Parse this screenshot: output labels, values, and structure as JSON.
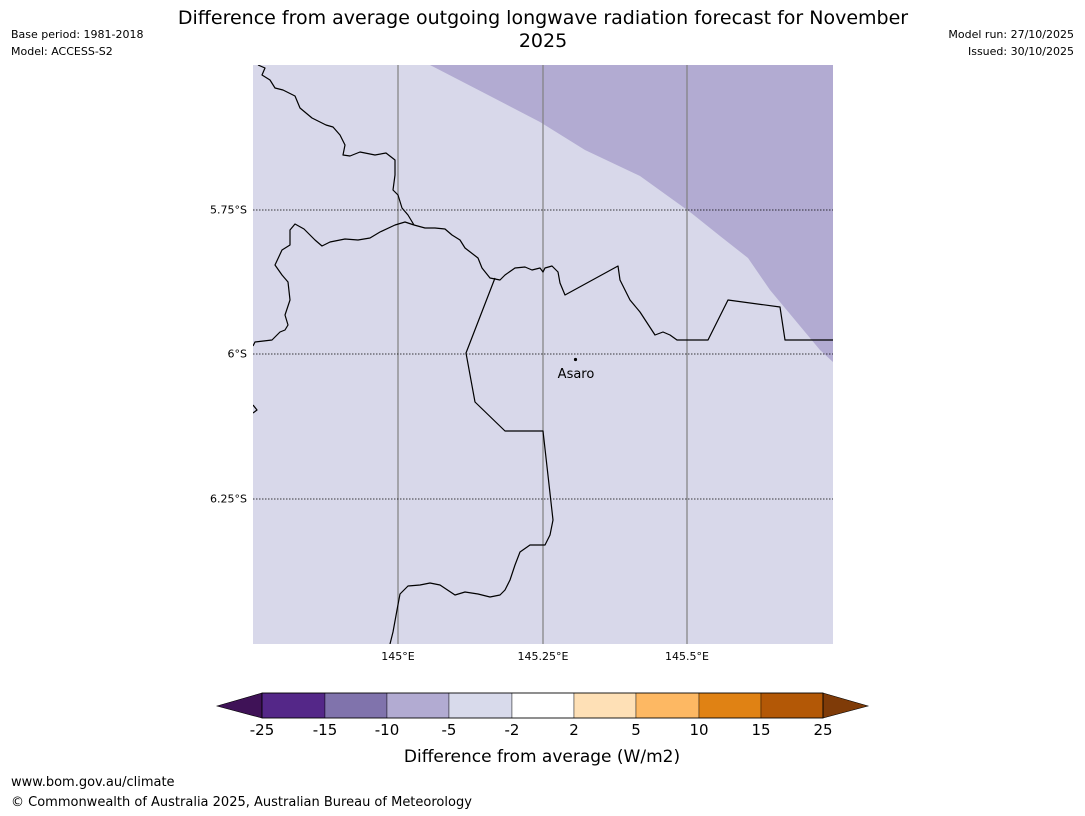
{
  "header": {
    "title": "Difference from average outgoing longwave radiation forecast for November 2025",
    "base_period": "Base period: 1981-2018",
    "model": "Model: ACCESS-S2",
    "model_run": "Model run: 27/10/2025",
    "issued": "Issued: 30/10/2025"
  },
  "map": {
    "place_label": "Asaro",
    "lat_labels": [
      "5.75°S",
      "6°S",
      "6.25°S"
    ],
    "lon_labels": [
      "145°E",
      "145.25°E",
      "145.5°E"
    ],
    "colors": {
      "background_bin": "#d8d8ea",
      "anomaly_bin": "#b2abd2",
      "border": "#000000",
      "gridline": "#808080"
    }
  },
  "colorbar": {
    "label": "Difference from average (W/m2)",
    "ticks": [
      "-25",
      "-15",
      "-10",
      "-5",
      "-2",
      "2",
      "5",
      "10",
      "15",
      "25"
    ],
    "colors": [
      "#3f1257",
      "#542788",
      "#8073ac",
      "#b2abd2",
      "#d8daeb",
      "#ffffff",
      "#fee0b6",
      "#fdb863",
      "#e08214",
      "#b35806",
      "#7f3b08"
    ]
  },
  "footer": {
    "url": "www.bom.gov.au/climate",
    "copyright": "© Commonwealth of Australia 2025, Australian Bureau of Meteorology"
  }
}
